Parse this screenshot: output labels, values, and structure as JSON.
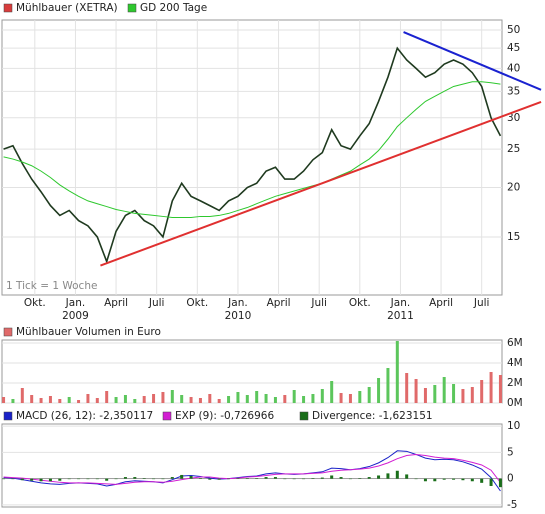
{
  "chart_data": [
    {
      "type": "line",
      "log_scale": true,
      "grid": true,
      "annotation": "1 Tick = 1 Woche",
      "x": [
        -10,
        -7,
        -4,
        -1,
        2,
        5,
        8,
        11,
        14,
        17,
        20,
        23,
        26,
        29,
        32,
        35,
        38,
        41,
        44,
        47,
        50,
        53,
        56,
        59,
        62,
        65,
        68,
        71,
        74,
        77,
        80,
        83,
        86,
        89,
        92,
        95,
        98,
        101,
        104,
        107,
        110,
        113,
        116,
        119,
        122,
        125,
        128,
        131,
        134,
        137,
        140,
        143,
        146,
        149
      ],
      "xlim": [
        -10.5,
        149.5
      ],
      "xticks": [
        {
          "value": 0,
          "label": "Okt."
        },
        {
          "value": 13,
          "label": "Jan."
        },
        {
          "value": 26,
          "label": "April"
        },
        {
          "value": 39,
          "label": "Juli"
        },
        {
          "value": 52,
          "label": "Okt."
        },
        {
          "value": 65,
          "label": "Jan."
        },
        {
          "value": 78,
          "label": "April"
        },
        {
          "value": 91,
          "label": "Juli"
        },
        {
          "value": 104,
          "label": "Okt."
        },
        {
          "value": 117,
          "label": "Jan."
        },
        {
          "value": 130,
          "label": "April"
        },
        {
          "value": 143,
          "label": "Juli"
        }
      ],
      "year_ticks": [
        {
          "value": 13,
          "label": "2009"
        },
        {
          "value": 65,
          "label": "2010"
        },
        {
          "value": 117,
          "label": "2011"
        }
      ],
      "ylim": [
        10.7,
        53
      ],
      "yticks": [
        15,
        20,
        25,
        30,
        35,
        40,
        45,
        50
      ],
      "series": [
        {
          "name": "Mühlbauer (XETRA)",
          "color": "#d83c3c",
          "line_color": "#1f3a1f",
          "values": [
            25,
            25.5,
            23,
            21,
            19.5,
            18,
            17,
            17.5,
            16.5,
            16,
            15,
            13,
            15.5,
            17,
            17.5,
            16.5,
            16,
            15,
            18.5,
            20.5,
            19,
            18.5,
            18,
            17.5,
            18.5,
            19,
            20,
            20.5,
            22,
            22.5,
            21,
            21,
            22,
            23.5,
            24.5,
            28,
            25.5,
            25,
            27,
            29,
            33,
            38,
            45,
            42,
            40,
            38,
            39,
            41,
            42,
            41,
            39,
            36,
            30,
            27
          ]
        },
        {
          "name": "GD 200 Tage",
          "color": "#2ec82e",
          "line_color": "#2ec82e",
          "values": [
            23.9,
            23.6,
            23.2,
            22.7,
            22,
            21.2,
            20.3,
            19.6,
            19,
            18.5,
            18.2,
            17.9,
            17.6,
            17.4,
            17.2,
            17.1,
            17,
            16.9,
            16.8,
            16.8,
            16.8,
            16.9,
            16.9,
            17,
            17.2,
            17.5,
            17.8,
            18.2,
            18.6,
            19,
            19.3,
            19.6,
            19.9,
            20.2,
            20.5,
            21,
            21.5,
            22,
            22.8,
            23.6,
            24.8,
            26.5,
            28.5,
            30,
            31.5,
            33,
            34,
            35,
            36,
            36.5,
            37,
            37,
            36.8,
            36.5
          ]
        }
      ],
      "trendlines": [
        {
          "color": "#e03030",
          "x": [
            21,
            162
          ],
          "y": [
            12.7,
            32.9
          ]
        },
        {
          "color": "#1a22d0",
          "x": [
            118,
            162
          ],
          "y": [
            49.4,
            35.3
          ]
        }
      ]
    },
    {
      "type": "bar",
      "grid": true,
      "x": [
        -10,
        -7,
        -4,
        -1,
        2,
        5,
        8,
        11,
        14,
        17,
        20,
        23,
        26,
        29,
        32,
        35,
        38,
        41,
        44,
        47,
        50,
        53,
        56,
        59,
        62,
        65,
        68,
        71,
        74,
        77,
        80,
        83,
        86,
        89,
        92,
        95,
        98,
        101,
        104,
        107,
        110,
        113,
        116,
        119,
        122,
        125,
        128,
        131,
        134,
        137,
        140,
        143,
        146,
        149
      ],
      "xlim": [
        -10.5,
        149.5
      ],
      "ylim": [
        0,
        6.3
      ],
      "yticks": [
        {
          "value": 0,
          "label": "0M"
        },
        {
          "value": 2,
          "label": "2M"
        },
        {
          "value": 4,
          "label": "4M"
        },
        {
          "value": 6,
          "label": "6M"
        }
      ],
      "up_color": "#5cc65c",
      "down_color": "#e06a6a",
      "series": [
        {
          "name": "Mühlbauer Volumen in Euro",
          "color": "#e06a6a",
          "values": [
            0.6,
            0.4,
            1.5,
            0.8,
            0.5,
            0.7,
            0.4,
            0.6,
            0.3,
            0.9,
            0.5,
            1.2,
            0.6,
            0.8,
            0.4,
            0.7,
            0.9,
            1.1,
            1.3,
            0.8,
            0.6,
            0.5,
            0.9,
            0.4,
            0.7,
            1.1,
            0.8,
            1.2,
            0.9,
            0.6,
            0.8,
            1.3,
            0.7,
            0.9,
            1.4,
            2.2,
            1.0,
            0.9,
            1.2,
            1.6,
            2.5,
            3.5,
            6.2,
            3.0,
            2.4,
            1.5,
            1.8,
            2.6,
            1.9,
            1.4,
            1.6,
            2.3,
            3.1,
            2.8
          ]
        }
      ]
    },
    {
      "type": "line",
      "grid": true,
      "x": [
        -10,
        -7,
        -4,
        -1,
        2,
        5,
        8,
        11,
        14,
        17,
        20,
        23,
        26,
        29,
        32,
        35,
        38,
        41,
        44,
        47,
        50,
        53,
        56,
        59,
        62,
        65,
        68,
        71,
        74,
        77,
        80,
        83,
        86,
        89,
        92,
        95,
        98,
        101,
        104,
        107,
        110,
        113,
        116,
        119,
        122,
        125,
        128,
        131,
        134,
        137,
        140,
        143,
        146,
        149
      ],
      "xlim": [
        -10.5,
        149.5
      ],
      "ylim": [
        -5.4,
        10.4
      ],
      "yticks": [
        -5,
        0,
        5,
        10
      ],
      "series": [
        {
          "name": "MACD (26, 12): -2,350117",
          "color": "#1a22c8",
          "style": "line",
          "values": [
            0.2,
            0.1,
            -0.2,
            -0.5,
            -0.8,
            -1.0,
            -1.1,
            -0.9,
            -0.8,
            -0.9,
            -1.0,
            -1.4,
            -1.1,
            -0.6,
            -0.4,
            -0.5,
            -0.6,
            -0.8,
            -0.2,
            0.5,
            0.6,
            0.4,
            0.1,
            -0.1,
            0.0,
            0.2,
            0.4,
            0.5,
            0.9,
            1.1,
            0.9,
            0.8,
            0.9,
            1.1,
            1.3,
            2.0,
            1.9,
            1.7,
            1.9,
            2.3,
            3.0,
            4.0,
            5.3,
            5.2,
            4.6,
            3.9,
            3.6,
            3.7,
            3.6,
            3.2,
            2.6,
            1.8,
            0.2,
            -2.350117
          ]
        },
        {
          "name": "EXP (9): -0,726966",
          "color": "#d21ed2",
          "style": "line",
          "values": [
            0.3,
            0.2,
            0.1,
            -0.1,
            -0.3,
            -0.5,
            -0.7,
            -0.8,
            -0.8,
            -0.8,
            -0.9,
            -1.0,
            -1.1,
            -0.9,
            -0.7,
            -0.6,
            -0.6,
            -0.7,
            -0.5,
            -0.2,
            0.1,
            0.3,
            0.3,
            0.1,
            0.0,
            0.1,
            0.3,
            0.4,
            0.6,
            0.8,
            0.9,
            0.9,
            0.9,
            1.0,
            1.1,
            1.4,
            1.6,
            1.7,
            1.8,
            2.0,
            2.4,
            3.0,
            3.8,
            4.4,
            4.6,
            4.4,
            4.1,
            3.9,
            3.8,
            3.5,
            3.1,
            2.6,
            1.6,
            -0.726966
          ]
        },
        {
          "name": "Divergence: -1,623151",
          "color": "#1a6e1a",
          "style": "bar",
          "values": [
            -0.1,
            -0.1,
            -0.3,
            -0.4,
            -0.5,
            -0.5,
            -0.4,
            -0.1,
            0,
            -0.1,
            -0.1,
            -0.4,
            0,
            0.3,
            0.3,
            0.1,
            0,
            -0.1,
            0.3,
            0.7,
            0.5,
            0.1,
            -0.2,
            -0.2,
            0,
            0.1,
            0.1,
            0.1,
            0.3,
            0.3,
            0,
            -0.1,
            0,
            0.1,
            0.2,
            0.6,
            0.3,
            0,
            0.1,
            0.3,
            0.6,
            1.0,
            1.5,
            0.8,
            0,
            -0.5,
            -0.5,
            -0.2,
            -0.2,
            -0.3,
            -0.5,
            -0.8,
            -1.4,
            -1.623151
          ]
        }
      ]
    }
  ]
}
